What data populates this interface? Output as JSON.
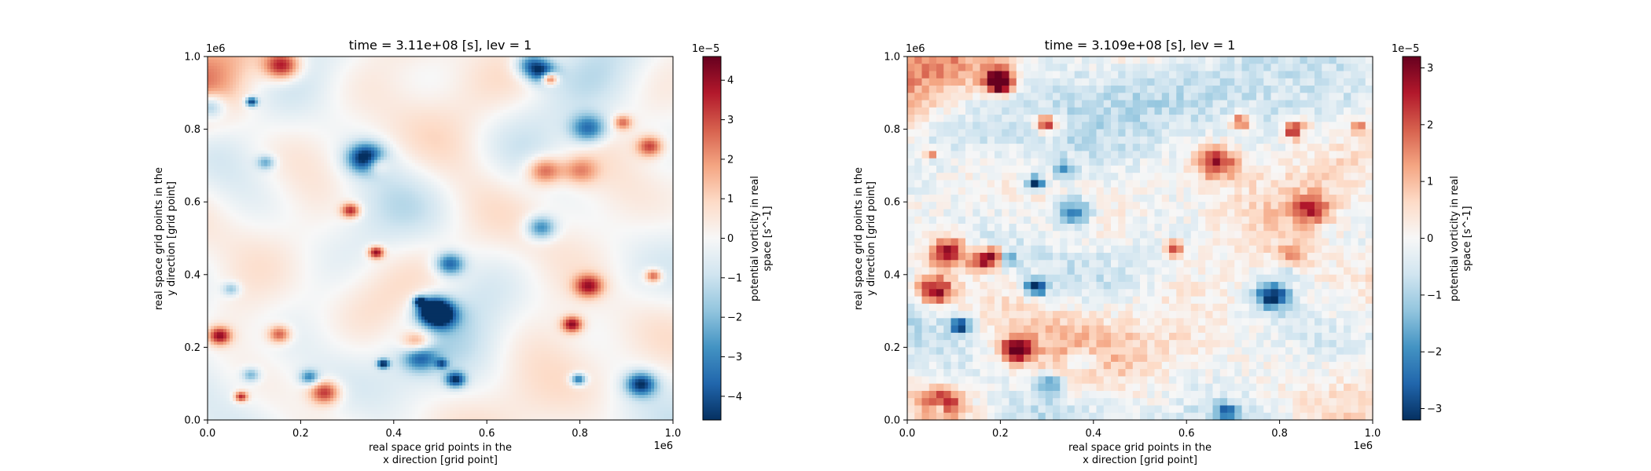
{
  "chart_data": [
    {
      "type": "heatmap",
      "title": "time = 3.11e+08 [s], lev = 1",
      "xlabel": [
        "real space grid points in the",
        "x direction [grid point]"
      ],
      "ylabel": [
        "real space grid points in the",
        "y direction [grid point]"
      ],
      "x_offset_text": "1e6",
      "y_offset_text": "1e6",
      "xlim": [
        0,
        1.0
      ],
      "ylim": [
        0,
        1.0
      ],
      "x_ticks": [
        "0.0",
        "0.2",
        "0.4",
        "0.6",
        "0.8",
        "1.0"
      ],
      "y_ticks": [
        "0.0",
        "0.2",
        "0.4",
        "0.6",
        "0.8",
        "1.0"
      ],
      "colormap": "RdBu_r",
      "grid_resolution": "fine",
      "colorbar": {
        "label": [
          "potential vorticity in real",
          "space [s^-1]"
        ],
        "offset_text": "1e−5",
        "range": [
          -4.6,
          4.6
        ],
        "ticks": [
          "4",
          "3",
          "2",
          "1",
          "0",
          "−1",
          "−2",
          "−3",
          "−4"
        ]
      }
    },
    {
      "type": "heatmap",
      "title": "time = 3.109e+08 [s], lev = 1",
      "xlabel": [
        "real space grid points in the",
        "x direction [grid point]"
      ],
      "ylabel": [
        "real space grid points in the",
        "y direction [grid point]"
      ],
      "x_offset_text": "1e6",
      "y_offset_text": "1e6",
      "xlim": [
        0,
        1.0
      ],
      "ylim": [
        0,
        1.0
      ],
      "x_ticks": [
        "0.0",
        "0.2",
        "0.4",
        "0.6",
        "0.8",
        "1.0"
      ],
      "y_ticks": [
        "0.0",
        "0.2",
        "0.4",
        "0.6",
        "0.8",
        "1.0"
      ],
      "colormap": "RdBu_r",
      "grid_resolution": "coarse",
      "colorbar": {
        "label": [
          "potential vorticity in real",
          "space [s^-1]"
        ],
        "offset_text": "1e−5",
        "range": [
          -3.2,
          3.2
        ],
        "ticks": [
          "3",
          "2",
          "1",
          "0",
          "−1",
          "−2",
          "−3"
        ]
      }
    }
  ]
}
